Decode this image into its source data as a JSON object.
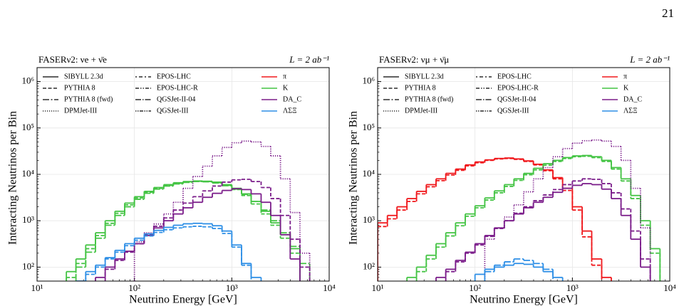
{
  "page_number": "21",
  "chart_data": [
    {
      "type": "histogram",
      "title": "FASERν2: νe + ν̄e",
      "annotation": "L = 2 ab⁻¹",
      "xlabel": "Neutrino Energy [GeV]",
      "ylabel": "Interacting Neutrinos per Bin",
      "xlim": [
        10,
        10000
      ],
      "ylim": [
        50,
        2000000
      ],
      "log_x": true,
      "log_y": true,
      "grid": true,
      "xticks": [
        {
          "value": 10,
          "label": "10¹"
        },
        {
          "value": 100,
          "label": "10²"
        },
        {
          "value": 1000,
          "label": "10³"
        },
        {
          "value": 10000,
          "label": "10⁴"
        }
      ],
      "yticks": [
        {
          "value": 100,
          "label": "10²"
        },
        {
          "value": 1000,
          "label": "10³"
        },
        {
          "value": 10000,
          "label": "10⁴"
        },
        {
          "value": 100000,
          "label": "10⁵"
        },
        {
          "value": 1000000,
          "label": "10⁶"
        }
      ],
      "bins": [
        10,
        12.6,
        15.8,
        20,
        25.1,
        31.6,
        39.8,
        50.1,
        63.1,
        79.4,
        100,
        126,
        158,
        200,
        251,
        316,
        398,
        501,
        631,
        794,
        1000,
        1260,
        1580,
        2000,
        2510,
        3160,
        3980,
        5010,
        6310,
        7940,
        10000
      ],
      "styles": [
        {
          "name": "SIBYLL 2.3d",
          "dash": "none"
        },
        {
          "name": "PYTHIA 8",
          "dash": "5,2.5"
        },
        {
          "name": "PYTHIA 8 (fwd)",
          "dash": "9,2.5,2,2.5"
        },
        {
          "name": "DPMJet-III",
          "dash": "1.2,1.8"
        },
        {
          "name": "EPOS-LHC",
          "dash": "2,3,5,3"
        },
        {
          "name": "EPOS-LHC-R",
          "dash": "5,2,1.5,2,1.5,2"
        },
        {
          "name": "QGSJet-II-04",
          "dash": "8,2,1.5,2"
        },
        {
          "name": "QGSJet-III",
          "dash": "1.5,1.5,1.5,1.5,5,1.5"
        }
      ],
      "parents": [
        {
          "name": "π",
          "color": "#f0181c"
        },
        {
          "name": "K",
          "color": "#44c444"
        },
        {
          "name": "DA_C",
          "color": "#7b1d8a"
        },
        {
          "name": "ΛΣΞ",
          "color": "#2e8fe6"
        }
      ],
      "series": [
        {
          "color": "#44c444",
          "dash": "none",
          "values": [
            null,
            null,
            null,
            80,
            150,
            300,
            550,
            1000,
            1600,
            2400,
            3300,
            4300,
            5200,
            6000,
            6600,
            7000,
            7200,
            7100,
            6800,
            6000,
            5000,
            3800,
            2600,
            1600,
            900,
            500,
            250,
            null,
            null,
            null
          ]
        },
        {
          "color": "#44c444",
          "dash": "5,2.5",
          "values": [
            null,
            null,
            null,
            60,
            120,
            250,
            480,
            880,
            1450,
            2200,
            3100,
            4100,
            5000,
            5800,
            6400,
            6900,
            7100,
            7000,
            6600,
            5800,
            4700,
            3500,
            2300,
            1400,
            800,
            420,
            200,
            null,
            null,
            null
          ]
        },
        {
          "color": "#44c444",
          "dash": "9,2.5,2,2.5",
          "values": [
            null,
            null,
            null,
            null,
            100,
            210,
            420,
            800,
            1300,
            2000,
            2900,
            3900,
            4800,
            5600,
            6200,
            6700,
            7000,
            6900,
            6500,
            5700,
            4800,
            3700,
            2600,
            1700,
            1000,
            550,
            280,
            120,
            null,
            null
          ]
        },
        {
          "color": "#7b1d8a",
          "dash": "none",
          "values": [
            null,
            null,
            null,
            null,
            null,
            null,
            60,
            100,
            150,
            220,
            320,
            480,
            700,
            1000,
            1400,
            1900,
            2500,
            3200,
            3900,
            4500,
            4900,
            4700,
            3800,
            2500,
            1300,
            500,
            150,
            null,
            null,
            null
          ]
        },
        {
          "color": "#7b1d8a",
          "dash": "5,2.5",
          "values": [
            null,
            null,
            null,
            null,
            null,
            null,
            null,
            90,
            140,
            210,
            320,
            500,
            760,
            1150,
            1700,
            2400,
            3300,
            4400,
            5600,
            6800,
            7600,
            7800,
            7000,
            5200,
            3000,
            1300,
            400,
            100,
            null,
            null
          ]
        },
        {
          "color": "#7b1d8a",
          "dash": "1.2,1.8",
          "values": [
            null,
            null,
            null,
            null,
            null,
            null,
            null,
            null,
            null,
            null,
            350,
            550,
            850,
            1400,
            2500,
            5000,
            9000,
            15000,
            25000,
            38000,
            48000,
            52000,
            50000,
            40000,
            25000,
            8000,
            1500,
            200,
            null,
            null
          ]
        },
        {
          "color": "#2e8fe6",
          "dash": "none",
          "values": [
            null,
            null,
            null,
            null,
            50,
            80,
            110,
            160,
            230,
            320,
            420,
            520,
            620,
            720,
            800,
            860,
            880,
            860,
            780,
            600,
            300,
            120,
            60,
            null,
            null,
            null,
            null,
            null,
            null,
            null
          ]
        },
        {
          "color": "#2e8fe6",
          "dash": "5,2.5",
          "values": [
            null,
            null,
            null,
            null,
            null,
            70,
            100,
            150,
            210,
            290,
            380,
            470,
            560,
            640,
            700,
            740,
            760,
            740,
            680,
            530,
            270,
            110,
            null,
            null,
            null,
            null,
            null,
            null,
            null,
            null
          ]
        }
      ]
    },
    {
      "type": "histogram",
      "title": "FASERν2: νμ + ν̄μ",
      "annotation": "L = 2 ab⁻¹",
      "xlabel": "Neutrino Energy [GeV]",
      "ylabel": "Interacting Neutrinos per Bin",
      "xlim": [
        10,
        10000
      ],
      "ylim": [
        50,
        2000000
      ],
      "log_x": true,
      "log_y": true,
      "grid": true,
      "xticks": [
        {
          "value": 10,
          "label": "10¹"
        },
        {
          "value": 100,
          "label": "10²"
        },
        {
          "value": 1000,
          "label": "10³"
        },
        {
          "value": 10000,
          "label": "10⁴"
        }
      ],
      "yticks": [
        {
          "value": 100,
          "label": "10²"
        },
        {
          "value": 1000,
          "label": "10³"
        },
        {
          "value": 10000,
          "label": "10⁴"
        },
        {
          "value": 100000,
          "label": "10⁵"
        },
        {
          "value": 1000000,
          "label": "10⁶"
        }
      ],
      "bins": [
        10,
        12.6,
        15.8,
        20,
        25.1,
        31.6,
        39.8,
        50.1,
        63.1,
        79.4,
        100,
        126,
        158,
        200,
        251,
        316,
        398,
        501,
        631,
        794,
        1000,
        1260,
        1580,
        2000,
        2510,
        3160,
        3980,
        5010,
        6310,
        7940,
        10000
      ],
      "styles": [
        {
          "name": "SIBYLL 2.3d",
          "dash": "none"
        },
        {
          "name": "PYTHIA 8",
          "dash": "5,2.5"
        },
        {
          "name": "PYTHIA 8 (fwd)",
          "dash": "9,2.5,2,2.5"
        },
        {
          "name": "DPMJet-III",
          "dash": "1.2,1.8"
        },
        {
          "name": "EPOS-LHC",
          "dash": "2,3,5,3"
        },
        {
          "name": "EPOS-LHC-R",
          "dash": "5,2,1.5,2,1.5,2"
        },
        {
          "name": "QGSJet-II-04",
          "dash": "8,2,1.5,2"
        },
        {
          "name": "QGSJet-III",
          "dash": "1.5,1.5,1.5,1.5,5,1.5"
        }
      ],
      "parents": [
        {
          "name": "π",
          "color": "#f0181c"
        },
        {
          "name": "K",
          "color": "#44c444"
        },
        {
          "name": "DA_C",
          "color": "#7b1d8a"
        },
        {
          "name": "ΛΣΞ",
          "color": "#2e8fe6"
        }
      ],
      "series": [
        {
          "color": "#f0181c",
          "dash": "none",
          "values": [
            900,
            1300,
            2000,
            3000,
            4300,
            6000,
            8000,
            10500,
            13000,
            16000,
            18500,
            20500,
            22000,
            22500,
            21500,
            19500,
            16500,
            12500,
            8500,
            5000,
            2000,
            600,
            150,
            60,
            null,
            null,
            null,
            null,
            null,
            null
          ]
        },
        {
          "color": "#f0181c",
          "dash": "5,2.5",
          "values": [
            750,
            1100,
            1700,
            2600,
            3800,
            5400,
            7300,
            9700,
            12200,
            15200,
            17800,
            20000,
            21500,
            22000,
            21000,
            19000,
            16000,
            12000,
            8000,
            4500,
            1700,
            450,
            110,
            null,
            null,
            null,
            null,
            null,
            null,
            null
          ]
        },
        {
          "color": "#44c444",
          "dash": "none",
          "values": [
            null,
            null,
            null,
            60,
            100,
            180,
            320,
            550,
            900,
            1400,
            2100,
            3100,
            4400,
            6000,
            8000,
            10500,
            13500,
            17000,
            20000,
            23000,
            25000,
            25500,
            24000,
            20000,
            14000,
            8000,
            3500,
            1000,
            250,
            null
          ]
        },
        {
          "color": "#44c444",
          "dash": "5,2.5",
          "values": [
            null,
            null,
            null,
            null,
            80,
            150,
            270,
            470,
            780,
            1250,
            1900,
            2800,
            4000,
            5500,
            7400,
            9800,
            12500,
            15800,
            19000,
            22000,
            24000,
            24500,
            23000,
            19000,
            13000,
            7200,
            3000,
            800,
            200,
            null
          ]
        },
        {
          "color": "#7b1d8a",
          "dash": "none",
          "values": [
            null,
            null,
            null,
            null,
            null,
            null,
            60,
            90,
            140,
            210,
            320,
            480,
            700,
            1000,
            1400,
            1900,
            2500,
            3200,
            4100,
            5000,
            5800,
            6300,
            6000,
            4800,
            3000,
            1300,
            400,
            100,
            null,
            null
          ]
        },
        {
          "color": "#7b1d8a",
          "dash": "5,2.5",
          "values": [
            null,
            null,
            null,
            null,
            null,
            null,
            null,
            80,
            130,
            200,
            300,
            460,
            680,
            1000,
            1450,
            2000,
            2700,
            3600,
            4700,
            6000,
            7200,
            8000,
            7800,
            6300,
            4000,
            1800,
            600,
            150,
            null,
            null
          ]
        },
        {
          "color": "#7b1d8a",
          "dash": "1.2,1.8",
          "values": [
            null,
            null,
            null,
            null,
            null,
            null,
            null,
            null,
            null,
            null,
            null,
            400,
            700,
            1200,
            2200,
            4200,
            8000,
            14000,
            24000,
            36000,
            47000,
            53000,
            55000,
            52000,
            40000,
            20000,
            5000,
            700,
            null,
            null
          ]
        },
        {
          "color": "#2e8fe6",
          "dash": "none",
          "values": [
            null,
            null,
            null,
            null,
            null,
            null,
            null,
            null,
            null,
            null,
            70,
            90,
            100,
            110,
            120,
            115,
            100,
            80,
            60,
            null,
            null,
            null,
            null,
            null,
            null,
            null,
            null,
            null,
            null,
            null
          ]
        },
        {
          "color": "#2e8fe6",
          "dash": "9,2.5,2,2.5",
          "values": [
            null,
            null,
            null,
            null,
            null,
            null,
            null,
            null,
            null,
            null,
            null,
            80,
            110,
            130,
            150,
            140,
            120,
            90,
            null,
            null,
            null,
            null,
            null,
            null,
            null,
            null,
            null,
            null,
            null,
            null
          ]
        }
      ]
    }
  ]
}
